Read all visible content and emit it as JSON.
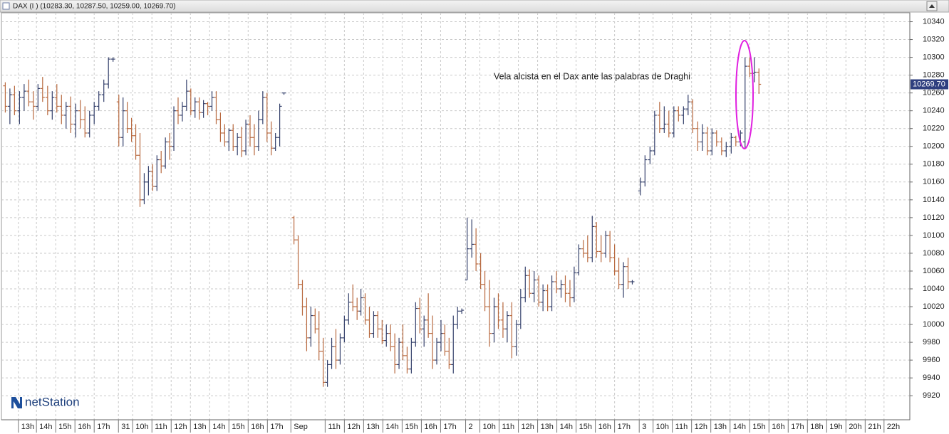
{
  "chart_data": {
    "type": "ohlc",
    "title": "DAX (I ) (10283.30, 10287.50, 10259.00, 10269.70)",
    "annotation": "Vela alcista en el Dax ante las palabras de Draghi",
    "brand": "netStation",
    "up_color": "#34406b",
    "down_color": "#b8693f",
    "grid": true,
    "ylim": [
      9893,
      10350
    ],
    "yticks": [
      9920,
      9940,
      9960,
      9980,
      10000,
      10020,
      10040,
      10060,
      10080,
      10100,
      10120,
      10140,
      10160,
      10180,
      10200,
      10220,
      10240,
      10260,
      10280,
      10300,
      10320,
      10340
    ],
    "xlim": [
      0,
      236
    ],
    "xticks": [
      {
        "value": 4.4,
        "label": "13h"
      },
      {
        "value": 9.1,
        "label": "14h"
      },
      {
        "value": 14.1,
        "label": "15h"
      },
      {
        "value": 19.1,
        "label": "16h"
      },
      {
        "value": 24.1,
        "label": "17h"
      },
      {
        "value": 30.4,
        "label": "31"
      },
      {
        "value": 34.1,
        "label": "10h"
      },
      {
        "value": 39.1,
        "label": "11h"
      },
      {
        "value": 44.1,
        "label": "12h"
      },
      {
        "value": 49.1,
        "label": "13h"
      },
      {
        "value": 54.1,
        "label": "14h"
      },
      {
        "value": 59.1,
        "label": "15h"
      },
      {
        "value": 64.1,
        "label": "16h"
      },
      {
        "value": 69.1,
        "label": "17h"
      },
      {
        "value": 75.2,
        "label": "Sep"
      },
      {
        "value": 84.1,
        "label": "11h"
      },
      {
        "value": 89.1,
        "label": "12h"
      },
      {
        "value": 94.1,
        "label": "13h"
      },
      {
        "value": 99.1,
        "label": "14h"
      },
      {
        "value": 104.1,
        "label": "15h"
      },
      {
        "value": 109.1,
        "label": "16h"
      },
      {
        "value": 114.1,
        "label": "17h"
      },
      {
        "value": 120.6,
        "label": "2"
      },
      {
        "value": 124.3,
        "label": "10h"
      },
      {
        "value": 129.3,
        "label": "11h"
      },
      {
        "value": 134.3,
        "label": "12h"
      },
      {
        "value": 139.3,
        "label": "13h"
      },
      {
        "value": 144.3,
        "label": "14h"
      },
      {
        "value": 149.3,
        "label": "15h"
      },
      {
        "value": 154.3,
        "label": "16h"
      },
      {
        "value": 159.3,
        "label": "17h"
      },
      {
        "value": 165.7,
        "label": "3"
      },
      {
        "value": 169.3,
        "label": "10h"
      },
      {
        "value": 174.3,
        "label": "11h"
      },
      {
        "value": 179.3,
        "label": "12h"
      },
      {
        "value": 184.3,
        "label": "13h"
      },
      {
        "value": 189.3,
        "label": "14h"
      },
      {
        "value": 194.4,
        "label": "15h"
      },
      {
        "value": 199.4,
        "label": "16h"
      },
      {
        "value": 204.4,
        "label": "17h"
      },
      {
        "value": 209.4,
        "label": "18h"
      },
      {
        "value": 214.4,
        "label": "19h"
      },
      {
        "value": 219.4,
        "label": "20h"
      },
      {
        "value": 224.4,
        "label": "21h"
      },
      {
        "value": 229.3,
        "label": "22h"
      }
    ],
    "last_price": {
      "value": 10269.7,
      "label": "10269.70"
    },
    "x": [
      1.0,
      2.2,
      3.4,
      4.7,
      5.9,
      7.1,
      8.3,
      9.5,
      10.7,
      12.0,
      13.2,
      14.4,
      15.6,
      16.8,
      18.0,
      19.3,
      20.5,
      21.7,
      22.9,
      24.1,
      25.3,
      26.6,
      27.8,
      29.0,
      30.5,
      31.6,
      32.7,
      33.8,
      34.9,
      36.0,
      37.1,
      38.2,
      39.3,
      40.4,
      41.5,
      42.6,
      43.7,
      44.8,
      45.9,
      47.0,
      48.1,
      49.2,
      50.3,
      51.4,
      52.5,
      53.6,
      54.7,
      55.8,
      56.9,
      58.0,
      59.1,
      60.2,
      61.3,
      62.4,
      63.5,
      64.6,
      65.7,
      66.8,
      67.9,
      69.0,
      70.1,
      71.2,
      72.3,
      73.4,
      76.0,
      77.1,
      78.2,
      79.3,
      80.4,
      81.5,
      82.5,
      83.6,
      84.7,
      85.8,
      86.9,
      88.0,
      89.1,
      90.2,
      91.3,
      92.4,
      93.4,
      94.5,
      95.6,
      96.7,
      97.8,
      98.9,
      100.0,
      101.1,
      102.2,
      103.3,
      104.3,
      105.4,
      106.5,
      107.6,
      108.7,
      109.8,
      110.9,
      112.0,
      113.1,
      114.2,
      115.2,
      116.3,
      117.4,
      118.5,
      119.6,
      121.0,
      122.2,
      123.3,
      124.5,
      125.6,
      126.8,
      128.0,
      129.1,
      130.3,
      131.4,
      132.6,
      133.8,
      134.9,
      136.1,
      137.2,
      138.4,
      139.6,
      140.7,
      141.9,
      143.0,
      144.2,
      145.4,
      146.5,
      147.7,
      148.8,
      150.0,
      151.2,
      152.3,
      153.5,
      154.6,
      155.8,
      157.0,
      158.1,
      159.3,
      160.4,
      161.6,
      162.8,
      163.9,
      166.0,
      167.2,
      168.5,
      169.7,
      171.0,
      172.2,
      173.4,
      174.7,
      175.9,
      177.2,
      178.4,
      179.6,
      180.9,
      182.1,
      183.4,
      184.6,
      185.8,
      187.1,
      188.3,
      189.6,
      190.8,
      192.0,
      193.2,
      194.4,
      195.6,
      196.8
    ],
    "open": [
      10268,
      10245,
      10258,
      10240,
      10255,
      10262,
      10250,
      10245,
      10265,
      10255,
      10240,
      10255,
      10245,
      10235,
      10245,
      10225,
      10240,
      10230,
      10215,
      10235,
      10245,
      10258,
      10270,
      10298,
      10250,
      10210,
      10240,
      10220,
      10212,
      10190,
      10140,
      10160,
      10172,
      10155,
      10185,
      10178,
      10205,
      10200,
      10240,
      10235,
      10245,
      10262,
      10240,
      10250,
      10238,
      10248,
      10245,
      10255,
      10230,
      10215,
      10205,
      10218,
      10200,
      10210,
      10195,
      10225,
      10210,
      10200,
      10230,
      10255,
      10215,
      10198,
      10210,
      10260,
      10120,
      10095,
      10045,
      10020,
      9985,
      10010,
      9995,
      9970,
      9935,
      9955,
      9975,
      9960,
      9985,
      10005,
      10025,
      10020,
      10015,
      10030,
      10005,
      9990,
      10010,
      9995,
      9982,
      9990,
      9975,
      9955,
      9980,
      9965,
      9950,
      9980,
      10018,
      9995,
      10005,
      9990,
      9960,
      9980,
      9990,
      9970,
      9955,
      10000,
      10015,
      10050,
      10085,
      10090,
      10068,
      10045,
      10020,
      9990,
      10020,
      10005,
      9995,
      10010,
      9975,
      10000,
      10030,
      10055,
      10035,
      10050,
      10025,
      10038,
      10020,
      10048,
      10040,
      10045,
      10035,
      10030,
      10058,
      10085,
      10080,
      10075,
      10110,
      10082,
      10080,
      10100,
      10075,
      10060,
      10045,
      10065,
      10048,
      10150,
      10160,
      10185,
      10195,
      10235,
      10220,
      10225,
      10215,
      10240,
      10235,
      10242,
      10250,
      10220,
      10205,
      10215,
      10195,
      10215,
      10205,
      10195,
      10200,
      10210,
      10205,
      10205,
      10290,
      10282,
      10283.3
    ],
    "high": [
      10272,
      10265,
      10268,
      10262,
      10270,
      10275,
      10262,
      10270,
      10278,
      10268,
      10262,
      10270,
      10258,
      10250,
      10256,
      10248,
      10252,
      10245,
      10240,
      10250,
      10262,
      10275,
      10300,
      10300,
      10258,
      10255,
      10250,
      10232,
      10225,
      10215,
      10170,
      10178,
      10180,
      10190,
      10195,
      10210,
      10215,
      10245,
      10255,
      10250,
      10275,
      10265,
      10255,
      10255,
      10252,
      10250,
      10262,
      10262,
      10238,
      10225,
      10220,
      10225,
      10215,
      10222,
      10230,
      10235,
      10225,
      10240,
      10262,
      10260,
      10228,
      10215,
      10248,
      10260,
      10122,
      10100,
      10050,
      10030,
      10020,
      10018,
      10015,
      9985,
      9960,
      9985,
      9995,
      9990,
      10010,
      10035,
      10045,
      10030,
      10040,
      10035,
      10020,
      10015,
      10015,
      10005,
      10000,
      10000,
      9990,
      9985,
      10000,
      9975,
      9985,
      10025,
      10030,
      10010,
      10035,
      10010,
      9985,
      10005,
      10000,
      9985,
      10010,
      10020,
      10018,
      10120,
      10118,
      10108,
      10080,
      10060,
      10050,
      10030,
      10035,
      10025,
      10015,
      10025,
      10005,
      10040,
      10065,
      10062,
      10060,
      10055,
      10045,
      10045,
      10055,
      10060,
      10050,
      10055,
      10050,
      10065,
      10090,
      10095,
      10100,
      10122,
      10115,
      10100,
      10105,
      10105,
      10090,
      10075,
      10070,
      10075,
      10050,
      10165,
      10190,
      10200,
      10240,
      10250,
      10245,
      10240,
      10245,
      10245,
      10245,
      10258,
      10253,
      10228,
      10225,
      10222,
      10220,
      10218,
      10210,
      10205,
      10215,
      10212,
      10218,
      10300,
      10300,
      10300,
      10287.5
    ],
    "low": [
      10238,
      10225,
      10235,
      10225,
      10240,
      10245,
      10230,
      10240,
      10250,
      10235,
      10230,
      10238,
      10225,
      10220,
      10215,
      10210,
      10220,
      10210,
      10210,
      10225,
      10240,
      10250,
      10265,
      10295,
      10200,
      10200,
      10215,
      10205,
      10185,
      10132,
      10135,
      10145,
      10150,
      10150,
      10170,
      10175,
      10185,
      10195,
      10225,
      10228,
      10240,
      10235,
      10232,
      10230,
      10232,
      10235,
      10240,
      10225,
      10205,
      10200,
      10195,
      10195,
      10190,
      10188,
      10190,
      10200,
      10190,
      10195,
      10225,
      10205,
      10190,
      10195,
      10200,
      10258,
      10090,
      10040,
      10010,
      9970,
      9975,
      9990,
      9960,
      9930,
      9930,
      9950,
      9950,
      9955,
      9980,
      10000,
      10015,
      10005,
      10010,
      10000,
      9985,
      9985,
      9985,
      9978,
      9975,
      9970,
      9945,
      9950,
      9960,
      9945,
      9945,
      9975,
      9990,
      9975,
      9985,
      9950,
      9955,
      9970,
      9965,
      9950,
      9945,
      9995,
      10012,
      10050,
      10075,
      10060,
      10040,
      10015,
      9975,
      9980,
      9995,
      9985,
      9980,
      9962,
      9965,
      9995,
      10025,
      10030,
      10025,
      10020,
      10015,
      10015,
      10015,
      10035,
      10030,
      10025,
      10020,
      10025,
      10055,
      10075,
      10070,
      10070,
      10075,
      10070,
      10075,
      10070,
      10055,
      10040,
      10030,
      10040,
      10045,
      10145,
      10155,
      10180,
      10190,
      10215,
      10215,
      10210,
      10210,
      10228,
      10225,
      10235,
      10215,
      10195,
      10195,
      10190,
      10190,
      10200,
      10190,
      10188,
      10192,
      10200,
      10200,
      10198,
      10278,
      10272,
      10259
    ],
    "close": [
      10245,
      10258,
      10240,
      10255,
      10262,
      10250,
      10245,
      10265,
      10255,
      10240,
      10255,
      10245,
      10235,
      10245,
      10225,
      10240,
      10230,
      10215,
      10235,
      10245,
      10258,
      10270,
      10298,
      10298,
      10210,
      10240,
      10220,
      10212,
      10190,
      10140,
      10160,
      10172,
      10155,
      10185,
      10178,
      10205,
      10200,
      10240,
      10235,
      10245,
      10262,
      10240,
      10250,
      10238,
      10248,
      10245,
      10255,
      10230,
      10215,
      10205,
      10218,
      10200,
      10210,
      10195,
      10225,
      10210,
      10200,
      10230,
      10255,
      10215,
      10198,
      10210,
      10245,
      10260,
      10095,
      10045,
      10020,
      9985,
      10010,
      9995,
      9970,
      9935,
      9955,
      9975,
      9960,
      9985,
      10005,
      10025,
      10020,
      10015,
      10030,
      10005,
      9990,
      10010,
      9995,
      9982,
      9990,
      9975,
      9955,
      9980,
      9965,
      9950,
      9980,
      10018,
      9995,
      10005,
      9990,
      9960,
      9980,
      9990,
      9970,
      9955,
      10000,
      10015,
      10016,
      10085,
      10090,
      10068,
      10045,
      10020,
      9990,
      10020,
      10005,
      9995,
      10010,
      9975,
      10000,
      10030,
      10055,
      10035,
      10050,
      10025,
      10038,
      10020,
      10048,
      10040,
      10045,
      10035,
      10030,
      10058,
      10085,
      10080,
      10075,
      10110,
      10082,
      10080,
      10100,
      10075,
      10060,
      10045,
      10065,
      10048,
      10048,
      10160,
      10185,
      10195,
      10235,
      10220,
      10225,
      10215,
      10240,
      10235,
      10242,
      10250,
      10220,
      10205,
      10215,
      10195,
      10215,
      10205,
      10195,
      10200,
      10210,
      10205,
      10215,
      10290,
      10282,
      10283.3,
      10269.7
    ]
  }
}
